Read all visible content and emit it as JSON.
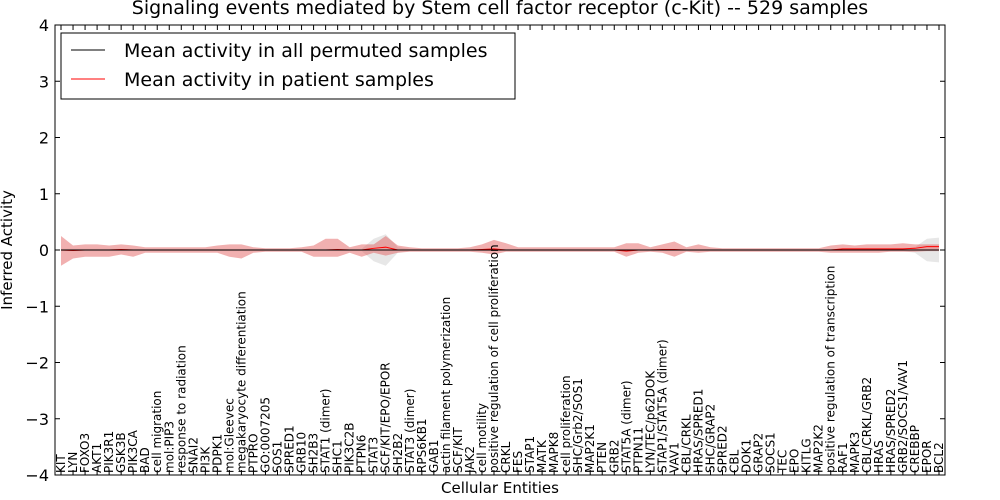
{
  "chart_data": {
    "type": "line",
    "title": "Signaling events mediated by Stem cell factor receptor (c-Kit) -- 529 samples",
    "xlabel": "Cellular Entities",
    "ylabel": "Inferred Activity",
    "ylim": [
      -4,
      4
    ],
    "yticks": [
      -4,
      -3,
      -2,
      -1,
      0,
      1,
      2,
      3,
      4
    ],
    "ytick_labels": [
      "−4",
      "−3",
      "−2",
      "−1",
      "0",
      "1",
      "2",
      "3",
      "4"
    ],
    "legend_position": "top-left",
    "categories": [
      "KIT",
      "LYN",
      "FOXO3",
      "AKT1",
      "PIK3R1",
      "GSK3B",
      "PIK3CA",
      "BAD",
      "cell migration",
      "mol:PIP3",
      "response to radiation",
      "SNAI2",
      "PI3K",
      "PDPK1",
      "mol:Gleevec",
      "megakaryocyte differentiation",
      "PTPRO",
      "GO:0007205",
      "SOS1",
      "SPRED1",
      "GRB10",
      "SH2B3",
      "STAT1 (dimer)",
      "SHC1",
      "PIK3C2B",
      "PTPN6",
      "STAT3",
      "SCF/KIT/EPO/EPOR",
      "SH2B2",
      "STAT3 (dimer)",
      "RPS6KB1",
      "GAB1",
      "actin filament polymerization",
      "SCF/KIT",
      "JAK2",
      "cell motility",
      "positive regulation of cell proliferation",
      "CRKL",
      "FES",
      "STAP1",
      "MATK",
      "MAPK8",
      "cell proliferation",
      "SHC/Grb2/SOS1",
      "MAP2K1",
      "PTEN",
      "GRB2",
      "STAT5A (dimer)",
      "PTPN11",
      "LYN/TEC/p62DOK",
      "STAP1/STAT5A (dimer)",
      "VAV1",
      "CBL/CRKL",
      "HRAS/SPRED1",
      "SHC/GRAP2",
      "SPRED2",
      "CBL",
      "DOK1",
      "GRAP2",
      "SOCS1",
      "TEC",
      "EPO",
      "KITLG",
      "MAP2K2",
      "positive regulation of transcription",
      "RAF1",
      "MAPK3",
      "CBL/CRKL/GRB2",
      "HRAS",
      "HRAS/SPRED2",
      "GRB2/SOCS1/VAV1",
      "CREBBP",
      "EPOR",
      "BCL2"
    ],
    "series": [
      {
        "name": "Mean activity in all permuted samples",
        "color": "#000000",
        "values": [
          0,
          0,
          0,
          0,
          0,
          0,
          0,
          0,
          0,
          0,
          0,
          0,
          0,
          0,
          0,
          0,
          0,
          0,
          0,
          0,
          0,
          0,
          0,
          0,
          0,
          0,
          0,
          0,
          0,
          0,
          0,
          0,
          0,
          0,
          0,
          0,
          0,
          0,
          0,
          0,
          0,
          0,
          0,
          0,
          0,
          0,
          0,
          0,
          0,
          0,
          0,
          0,
          0,
          0,
          0,
          0,
          0,
          0,
          0,
          0,
          0,
          0,
          0,
          0,
          0,
          0,
          0,
          0,
          0,
          0,
          0,
          0,
          0,
          0
        ],
        "lower": [
          -0.02,
          -0.02,
          -0.02,
          -0.02,
          -0.02,
          -0.02,
          -0.02,
          -0.02,
          -0.02,
          -0.02,
          -0.02,
          -0.02,
          -0.02,
          -0.02,
          -0.02,
          -0.02,
          -0.02,
          -0.02,
          -0.02,
          -0.02,
          -0.02,
          -0.02,
          -0.02,
          -0.02,
          -0.02,
          -0.02,
          -0.2,
          -0.28,
          -0.05,
          -0.02,
          -0.02,
          -0.02,
          -0.02,
          -0.02,
          -0.02,
          -0.02,
          -0.02,
          -0.02,
          -0.02,
          -0.02,
          -0.02,
          -0.02,
          -0.02,
          -0.02,
          -0.02,
          -0.02,
          -0.02,
          -0.02,
          -0.02,
          -0.02,
          -0.02,
          -0.02,
          -0.02,
          -0.02,
          -0.02,
          -0.02,
          -0.02,
          -0.02,
          -0.02,
          -0.02,
          -0.02,
          -0.02,
          -0.02,
          -0.02,
          -0.02,
          -0.02,
          -0.02,
          -0.02,
          -0.02,
          -0.02,
          -0.02,
          -0.05,
          -0.2,
          -0.22
        ],
        "upper": [
          0.02,
          0.02,
          0.02,
          0.02,
          0.02,
          0.02,
          0.02,
          0.02,
          0.02,
          0.02,
          0.02,
          0.02,
          0.02,
          0.02,
          0.02,
          0.02,
          0.02,
          0.02,
          0.02,
          0.02,
          0.02,
          0.02,
          0.02,
          0.02,
          0.02,
          0.02,
          0.2,
          0.28,
          0.05,
          0.02,
          0.02,
          0.02,
          0.02,
          0.02,
          0.02,
          0.02,
          0.02,
          0.02,
          0.02,
          0.02,
          0.02,
          0.02,
          0.02,
          0.02,
          0.02,
          0.02,
          0.02,
          0.02,
          0.02,
          0.02,
          0.02,
          0.02,
          0.02,
          0.02,
          0.02,
          0.02,
          0.02,
          0.02,
          0.02,
          0.02,
          0.02,
          0.02,
          0.02,
          0.02,
          0.02,
          0.02,
          0.02,
          0.02,
          0.02,
          0.02,
          0.02,
          0.05,
          0.2,
          0.22
        ]
      },
      {
        "name": "Mean activity in patient samples",
        "color": "#ff0000",
        "values": [
          0,
          -0.01,
          0,
          0,
          0,
          0.01,
          0,
          0,
          0,
          0,
          0,
          0,
          0,
          0,
          0,
          0,
          0,
          0,
          0,
          0,
          0,
          0,
          0,
          0.01,
          0,
          0,
          0.03,
          0.05,
          0,
          0,
          0,
          0,
          0,
          0,
          0,
          0.01,
          0.02,
          0,
          0,
          0,
          0,
          0,
          0,
          0,
          0,
          0,
          0,
          -0.02,
          0,
          0,
          0.01,
          0.01,
          0,
          0,
          0,
          0,
          0,
          0,
          0,
          0,
          0,
          0,
          0,
          0,
          0,
          0.02,
          0.02,
          0.02,
          0.02,
          0.02,
          0.02,
          0.03,
          0.06,
          0.06
        ],
        "lower": [
          -0.28,
          -0.15,
          -0.12,
          -0.12,
          -0.12,
          -0.08,
          -0.12,
          -0.05,
          -0.05,
          -0.05,
          -0.05,
          -0.05,
          -0.05,
          -0.05,
          -0.12,
          -0.15,
          -0.05,
          -0.03,
          -0.03,
          -0.03,
          -0.03,
          -0.12,
          -0.12,
          -0.12,
          -0.05,
          -0.12,
          -0.05,
          -0.1,
          -0.05,
          -0.03,
          -0.03,
          -0.03,
          -0.03,
          -0.03,
          -0.03,
          -0.05,
          -0.08,
          -0.03,
          -0.03,
          -0.03,
          -0.03,
          -0.03,
          -0.03,
          -0.03,
          -0.03,
          -0.03,
          -0.03,
          -0.12,
          -0.05,
          -0.03,
          -0.05,
          -0.12,
          -0.03,
          -0.05,
          -0.03,
          -0.03,
          -0.03,
          -0.03,
          -0.03,
          -0.03,
          -0.03,
          -0.03,
          -0.03,
          -0.03,
          -0.05,
          -0.05,
          -0.05,
          -0.05,
          -0.05,
          -0.03,
          -0.03,
          -0.03,
          -0.02,
          -0.02
        ],
        "upper": [
          0.25,
          0.08,
          0.1,
          0.1,
          0.08,
          0.1,
          0.08,
          0.05,
          0.05,
          0.05,
          0.05,
          0.05,
          0.05,
          0.08,
          0.1,
          0.1,
          0.05,
          0.03,
          0.03,
          0.03,
          0.05,
          0.08,
          0.2,
          0.2,
          0.05,
          0.1,
          0.1,
          0.25,
          0.08,
          0.05,
          0.03,
          0.03,
          0.03,
          0.03,
          0.05,
          0.1,
          0.18,
          0.12,
          0.05,
          0.05,
          0.05,
          0.05,
          0.05,
          0.05,
          0.05,
          0.05,
          0.05,
          0.12,
          0.12,
          0.05,
          0.1,
          0.15,
          0.05,
          0.1,
          0.05,
          0.03,
          0.03,
          0.03,
          0.03,
          0.03,
          0.03,
          0.03,
          0.03,
          0.03,
          0.08,
          0.1,
          0.08,
          0.1,
          0.1,
          0.1,
          0.12,
          0.1,
          0.1,
          0.1
        ]
      }
    ]
  }
}
